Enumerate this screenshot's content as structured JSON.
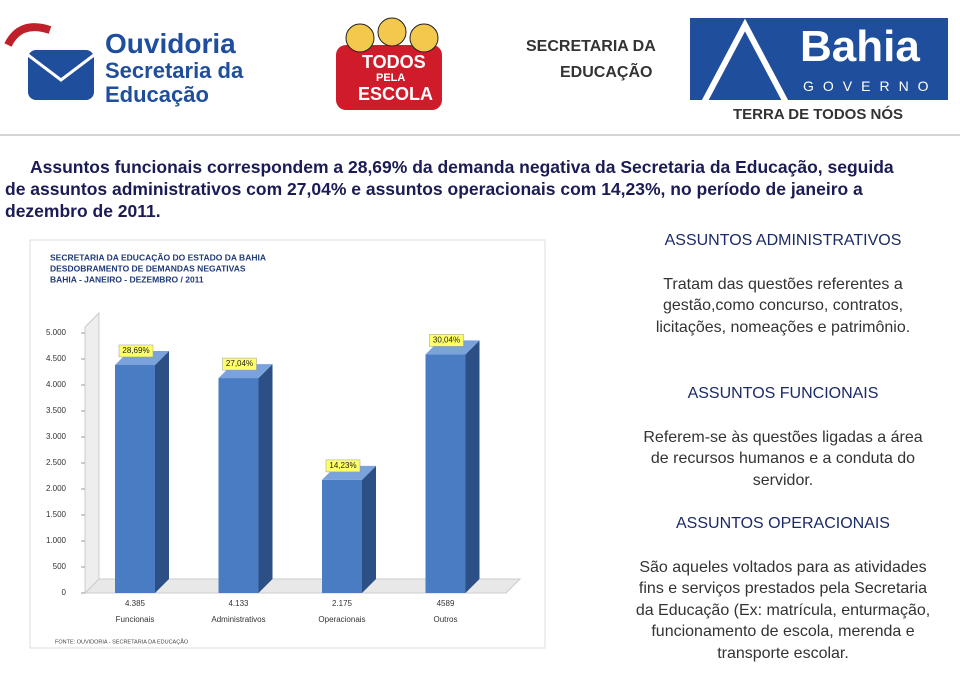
{
  "logos": {
    "ouvidoria": [
      "Ouvidoria",
      "Secretaria da",
      "Educação"
    ],
    "todos": [
      "TODOS",
      "PELA",
      "ESCOLA"
    ],
    "secretaria": [
      "SECRETARIA DA",
      "EDUCAÇÃO"
    ],
    "bahia": [
      "Bahia",
      "GOVERNO",
      "TERRA DE TODOS NÓS"
    ]
  },
  "heading": "Assuntos funcionais correspondem a 28,69% da demanda negativa da Secretaria da Educação, seguida de assuntos administrativos com 27,04% e assuntos operacionais com 14,23%, no período de janeiro a dezembro de 2011.",
  "sections": [
    {
      "title": "ASSUNTOS ADMINISTRATIVOS",
      "body": "Tratam das questões referentes a gestão,como concurso, contratos, licitações, nomeações e patrimônio."
    },
    {
      "title": "ASSUNTOS FUNCIONAIS",
      "body": "Referem-se às questões ligadas a área de recursos humanos e a conduta do servidor."
    },
    {
      "title": "ASSUNTOS OPERACIONAIS",
      "body": "São aqueles voltados para as atividades fins e serviços prestados pela Secretaria da Educação (Ex: matrícula, enturmação, funcionamento de escola, merenda e transporte escolar."
    }
  ],
  "chart_data": {
    "type": "bar",
    "title": [
      "SECRETARIA DA EDUCAÇÃO DO ESTADO DA BAHIA",
      "DESDOBRAMENTO DE DEMANDAS NEGATIVAS",
      "BAHIA - JANEIRO - DEZEMBRO / 2011"
    ],
    "source": "FONTE: OUVIDORIA - SECRETARIA DA EDUCAÇÃO",
    "categories": [
      "Funcionais",
      "Administrativos",
      "Operacionais",
      "Outros"
    ],
    "values": [
      4385,
      4133,
      2175,
      4589
    ],
    "value_labels": [
      "4.385",
      "4.133",
      "2.175",
      "4589"
    ],
    "percentages": [
      28.69,
      27.04,
      14.23,
      30.04
    ],
    "percentage_labels": [
      "28,69%",
      "27,04%",
      "14,23%",
      "30,04%"
    ],
    "color": "#4a7cc4",
    "ylim": [
      0,
      5000
    ],
    "yticks": [
      0,
      500,
      {
        "value": 1000,
        "label": "1.000"
      },
      {
        "value": 1500,
        "label": "1.500"
      },
      {
        "value": 2000,
        "label": "2.000"
      },
      {
        "value": 2500,
        "label": "2.500"
      },
      {
        "value": 3000,
        "label": "3.000"
      },
      {
        "value": 3500,
        "label": "3.500"
      },
      {
        "value": 4000,
        "label": "4.000"
      },
      {
        "value": 4500,
        "label": "4.500"
      },
      {
        "value": 5000,
        "label": "5.000"
      }
    ]
  }
}
